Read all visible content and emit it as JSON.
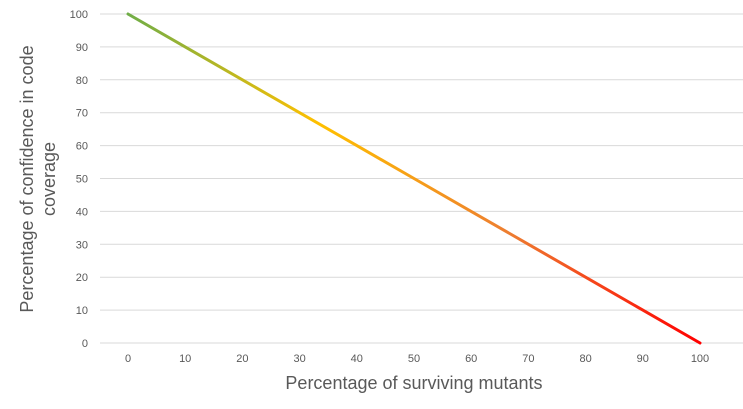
{
  "chart_data": {
    "type": "line",
    "title": "",
    "xlabel": "Percentage of surviving mutants",
    "ylabel": "Percentage of confidence in code coverage",
    "categories": [
      "0",
      "10",
      "20",
      "30",
      "40",
      "50",
      "60",
      "70",
      "80",
      "90",
      "100"
    ],
    "x": [
      0,
      10,
      20,
      30,
      40,
      50,
      60,
      70,
      80,
      90,
      100
    ],
    "y_ticks": [
      0,
      10,
      20,
      30,
      40,
      50,
      60,
      70,
      80,
      90,
      100
    ],
    "ylim": [
      0,
      100
    ],
    "series": [
      {
        "values": [
          100,
          90,
          80,
          70,
          60,
          50,
          40,
          30,
          20,
          10,
          0
        ],
        "gradient_colors": [
          "#70ad47",
          "#ffc000",
          "#ed7d31",
          "#ff0000"
        ]
      }
    ],
    "grid": true,
    "legend": "none"
  }
}
